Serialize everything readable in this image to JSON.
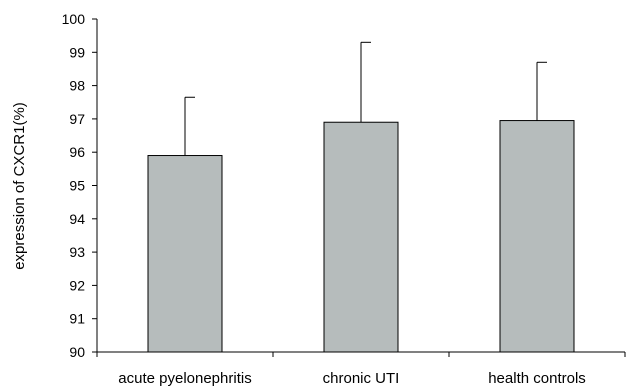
{
  "chart_data": {
    "type": "bar",
    "title": "",
    "xlabel": "",
    "ylabel": "expression of CXCR1(%)",
    "categories": [
      "acute pyelonephritis",
      "chronic UTI",
      "health controls"
    ],
    "values": [
      95.9,
      96.9,
      96.95
    ],
    "error_upper": [
      97.65,
      99.3,
      98.7
    ],
    "ylim": [
      90,
      100
    ],
    "yticks": [
      90,
      91,
      92,
      93,
      94,
      95,
      96,
      97,
      98,
      99,
      100
    ],
    "bar_color": "#b6bcbc",
    "grid": false,
    "legend": "none"
  }
}
